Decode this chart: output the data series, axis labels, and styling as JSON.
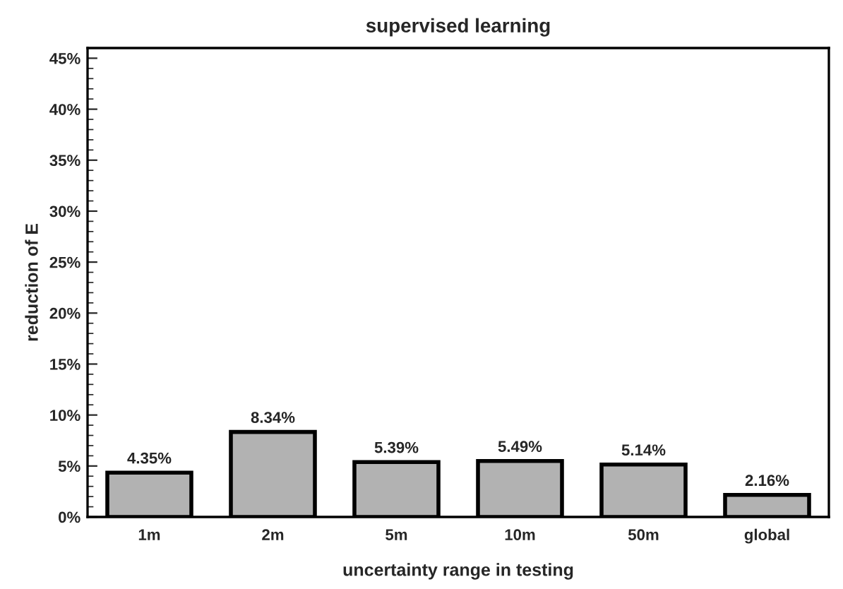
{
  "chart_data": {
    "type": "bar",
    "title": "supervised learning",
    "xlabel": "uncertainty range in testing",
    "ylabel": "reduction of E",
    "categories": [
      "1m",
      "2m",
      "5m",
      "10m",
      "50m",
      "global"
    ],
    "values": [
      4.35,
      8.34,
      5.39,
      5.49,
      5.14,
      2.16
    ],
    "value_labels": [
      "4.35%",
      "8.34%",
      "5.39%",
      "5.49%",
      "5.14%",
      "2.16%"
    ],
    "color": "#b2b2b2",
    "ylim": [
      0,
      46
    ],
    "yticks": [
      {
        "value": 0,
        "label": "0%"
      },
      {
        "value": 5,
        "label": "5%"
      },
      {
        "value": 10,
        "label": "10%"
      },
      {
        "value": 15,
        "label": "15%"
      },
      {
        "value": 20,
        "label": "20%"
      },
      {
        "value": 25,
        "label": "25%"
      },
      {
        "value": 30,
        "label": "30%"
      },
      {
        "value": 35,
        "label": "35%"
      },
      {
        "value": 40,
        "label": "40%"
      },
      {
        "value": 45,
        "label": "45%"
      }
    ],
    "grid": false,
    "legend": false
  }
}
